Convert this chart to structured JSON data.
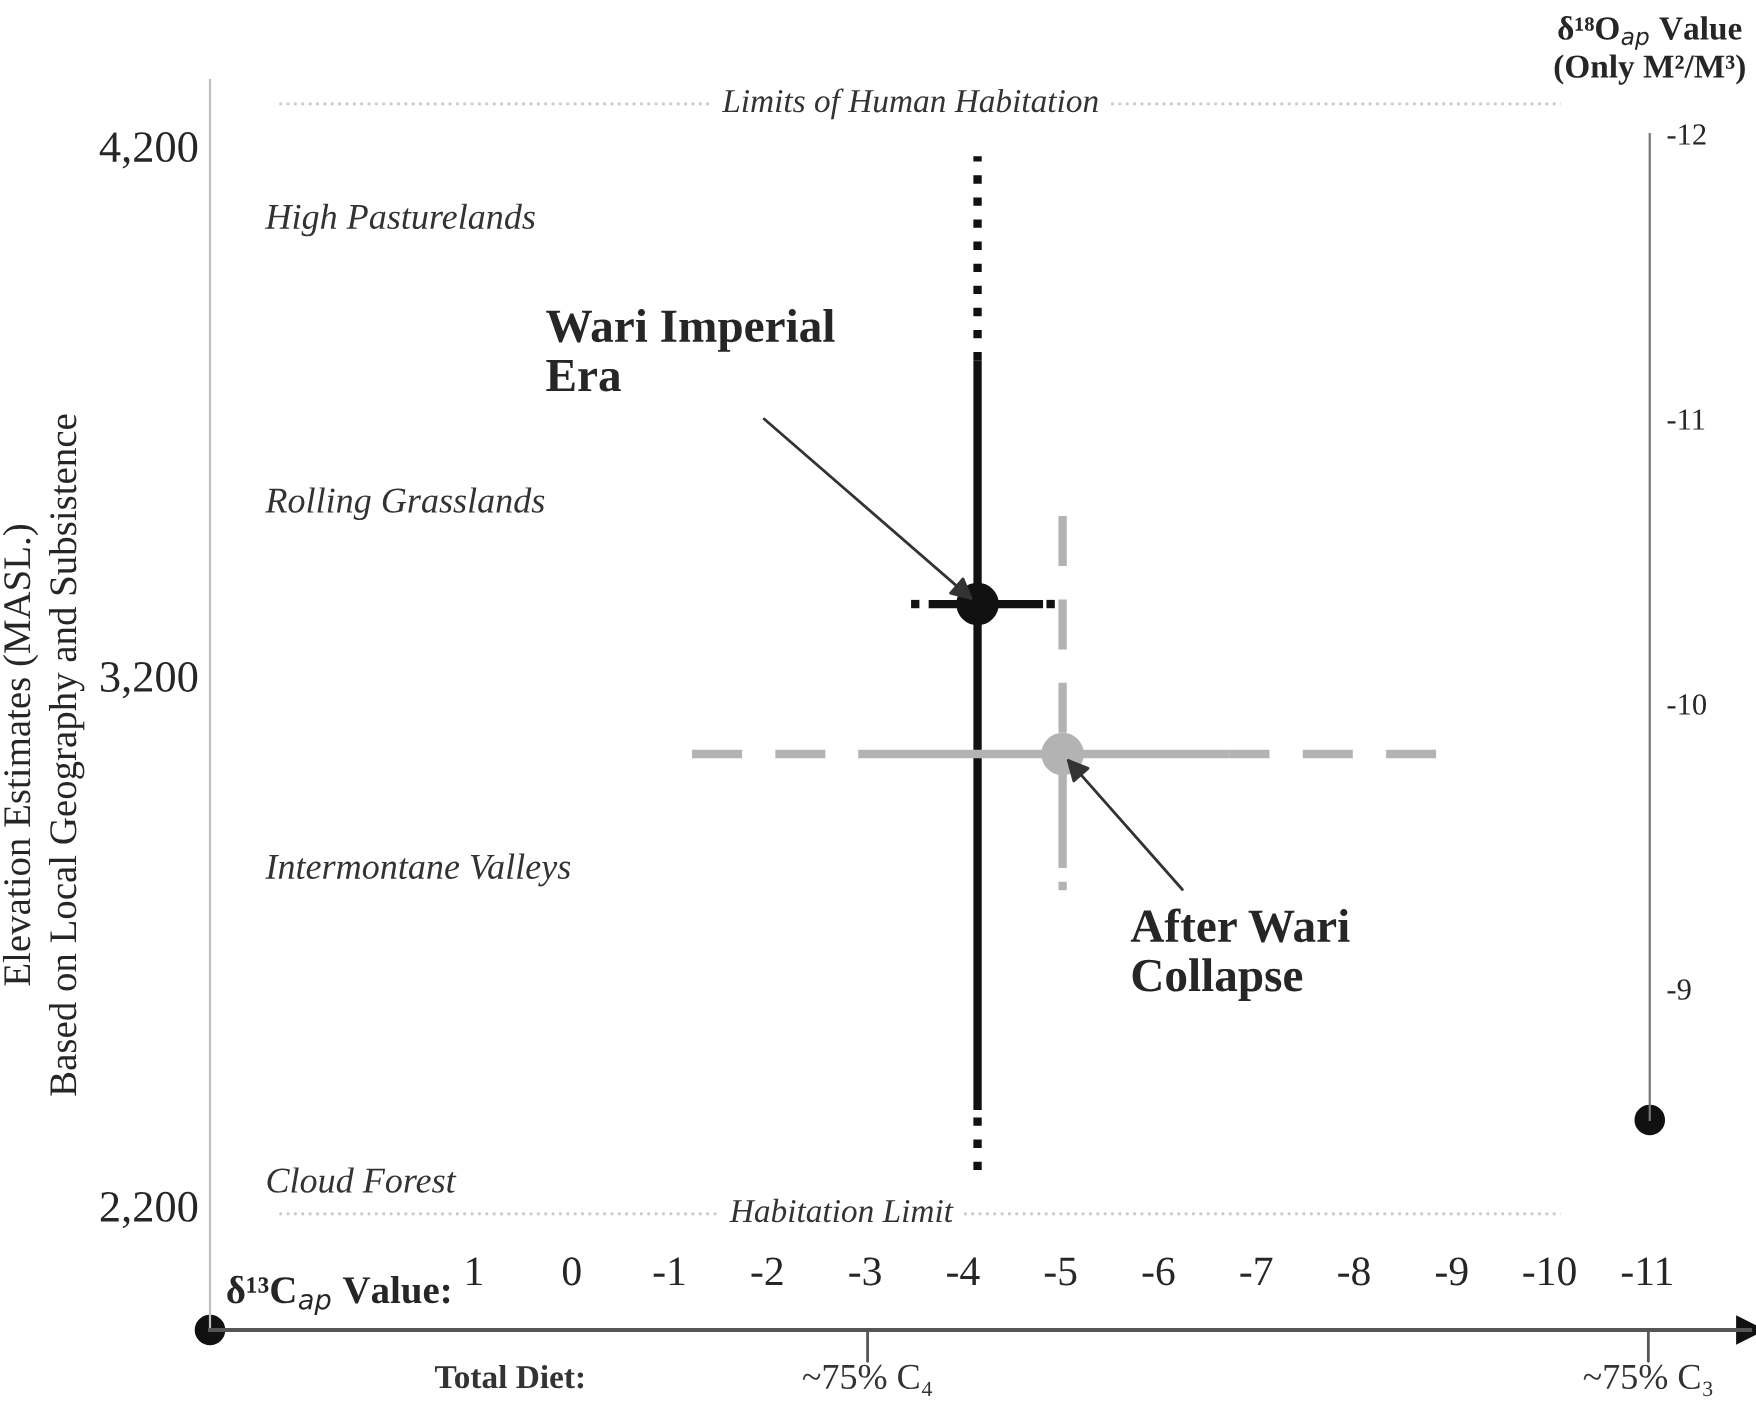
{
  "chart_data": {
    "type": "scatter",
    "xlabel": "δ¹³C$_{ap}$ Value:",
    "ylabel": "Elevation Estimates (MASL.)\nBased on Local Geography and Subsistence",
    "y2label": "δ¹⁸O$_{ap}$ Value\n(Only M²/M³)",
    "xlim": [
      3.7,
      -12.05
    ],
    "xticks": [
      1,
      0,
      -1,
      -2,
      -3,
      -4,
      -5,
      -6,
      -7,
      -8,
      -9,
      -10,
      -11
    ],
    "ylim": [
      1966,
      4325
    ],
    "yticks": [
      {
        "value": 2200,
        "label": "2,200"
      },
      {
        "value": 3200,
        "label": "3,200"
      },
      {
        "value": 4200,
        "label": "4,200"
      }
    ],
    "y2lim": [
      -8.54,
      -12
    ],
    "y2ticks": [
      -12,
      -11,
      -10,
      -9
    ],
    "series": [
      {
        "color": "#111111",
        "x": [
          -4.15
        ],
        "values": [
          3336
        ],
        "errors": [
          [
            2381,
            3796
          ]
        ],
        "xerrors": [
          [
            -4.82,
            -3.65
          ]
        ]
      },
      {
        "type": "line",
        "color": "#111111",
        "line_style": "dotted",
        "x": [
          -4.15,
          -4.15
        ],
        "values": [
          3796,
          4181
        ]
      },
      {
        "type": "line",
        "color": "#111111",
        "line_style": "dotted",
        "x": [
          -4.15,
          -4.15
        ],
        "values": [
          2268,
          2381
        ]
      },
      {
        "type": "line",
        "color": "#111111",
        "line_style": "dotted",
        "x": [
          -3.47,
          -3.65
        ],
        "values": [
          3336,
          3336
        ]
      },
      {
        "type": "line",
        "color": "#111111",
        "line_style": "dotted",
        "x": [
          -4.94,
          -4.82
        ],
        "values": [
          3336,
          3336
        ]
      },
      {
        "color": "#b3b3b3",
        "x": [
          -5.02
        ],
        "values": [
          3053
        ],
        "errors": [
          [
            2853,
            3053
          ]
        ],
        "xerrors": [
          [
            -6.73,
            -2.93
          ]
        ]
      },
      {
        "type": "line",
        "color": "#b3b3b3",
        "line_style": "dashed",
        "x": [
          -5.02,
          -5.02
        ],
        "values": [
          3502,
          3053
        ]
      },
      {
        "type": "line",
        "color": "#b3b3b3",
        "line_style": "dotted",
        "x": [
          -5.02,
          -5.02
        ],
        "values": [
          2796,
          2853
        ]
      },
      {
        "type": "line",
        "color": "#b3b3b3",
        "line_style": "dashed",
        "x": [
          -1.23,
          -2.93
        ],
        "values": [
          3053,
          3053
        ]
      },
      {
        "type": "line",
        "color": "#b3b3b3",
        "line_style": "dashed",
        "x": [
          -8.84,
          -6.73
        ],
        "values": [
          3053,
          3053
        ]
      }
    ],
    "ref_lines": [
      {
        "axis": "y",
        "value": 4280,
        "label": "Limits of Human Habitation",
        "color": "#c8c8c8",
        "line_style": "dotted"
      },
      {
        "axis": "y",
        "value": 2185,
        "label": "Habitation Limit",
        "color": "#c8c8c8",
        "line_style": "dotted"
      }
    ],
    "annotations": [
      {
        "text": "Wari Imperial\nEra",
        "x": -4.15,
        "y": 3336
      },
      {
        "text": "After Wari\nCollapse",
        "x": -5.02,
        "y": 3053
      },
      "High Pasturelands",
      "Rolling Grasslands",
      "Intermontane Valleys",
      "Cloud Forest",
      "Total Diet:",
      "~75% C₄",
      "~75% C₃"
    ],
    "grid": false,
    "legend": false
  }
}
